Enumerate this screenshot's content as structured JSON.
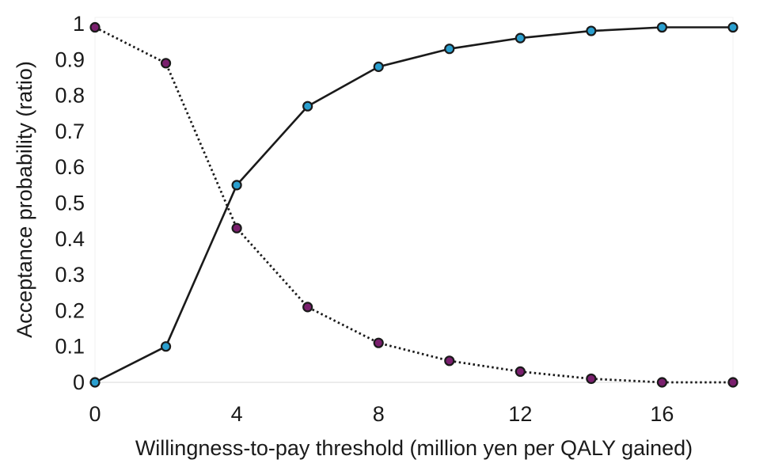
{
  "chart_data": {
    "type": "line",
    "title": "",
    "xlabel": "Willingness-to-pay threshold (million yen per QALY gained)",
    "ylabel": "Acceptance probability (ratio)",
    "xlim": [
      0,
      18
    ],
    "ylim": [
      0,
      1
    ],
    "x_ticks": [
      0,
      4,
      8,
      12,
      16
    ],
    "y_ticks": [
      0,
      0.1,
      0.2,
      0.3,
      0.4,
      0.5,
      0.6,
      0.7,
      0.8,
      0.9,
      1
    ],
    "x_tick_labels": [
      "0",
      "4",
      "8",
      "12",
      "16"
    ],
    "y_tick_labels": [
      "0",
      "0.1",
      "0.2",
      "0.3",
      "0.4",
      "0.5",
      "0.6",
      "0.7",
      "0.8",
      "0.9",
      "1"
    ],
    "grid": false,
    "legend": "none",
    "x": [
      0,
      2,
      4,
      6,
      8,
      10,
      12,
      14,
      16,
      18
    ],
    "series": [
      {
        "line_style": "solid",
        "line_color": "#1a1a1a",
        "marker_color": "#2a9fcf",
        "values": [
          0.0,
          0.1,
          0.55,
          0.77,
          0.88,
          0.93,
          0.96,
          0.98,
          0.99,
          0.99
        ]
      },
      {
        "line_style": "dotted",
        "line_color": "#1a1a1a",
        "marker_color": "#7a1f6e",
        "values": [
          0.99,
          0.89,
          0.43,
          0.21,
          0.11,
          0.06,
          0.03,
          0.01,
          0.0,
          0.0
        ]
      }
    ]
  }
}
